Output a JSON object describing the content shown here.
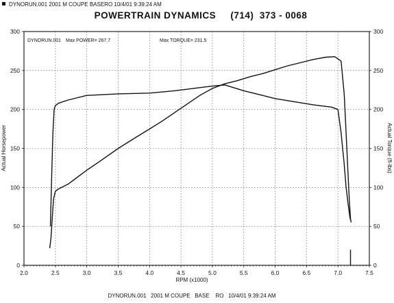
{
  "header": {
    "square_icon": "filled-square-icon",
    "text": "DYNORUN.001   2001 M COUPE   BASERO  10/4/01 9:39:24 AM"
  },
  "title": "POWERTRAIN DYNAMICS     (714)  373 - 0068",
  "footer": "DYNORUN.001   2001 M COUPE   BASE    RO   10/4/01 9:39:24 AM",
  "inner_labels": {
    "run": "DYNORUN.001",
    "max_power": "Max POWER= 267.7",
    "max_torque": "Max TORQUE= 231.5"
  },
  "chart_data": {
    "type": "line",
    "xlabel": "RPM (x1000)",
    "ylabel_left": "Actual Horsepower",
    "ylabel_right": "Actual Torque (ft-lbs)",
    "xlim": [
      2.0,
      7.5
    ],
    "ylim": [
      0,
      300
    ],
    "xticks": [
      2.0,
      2.5,
      3.0,
      3.5,
      4.0,
      4.5,
      5.0,
      5.5,
      6.0,
      6.5,
      7.0,
      7.5
    ],
    "xtick_labels": [
      "2.0",
      "2.5",
      "3.0",
      "3.5",
      "4.0",
      "4.5",
      "5.0",
      "5.5",
      "6.0",
      "6.5",
      "7.0",
      "7.5"
    ],
    "yticks": [
      0,
      50,
      100,
      150,
      200,
      250,
      300
    ],
    "ytick_labels_left": [
      "0",
      "50",
      "100",
      "150",
      "200",
      "250",
      "300"
    ],
    "ytick_labels_right": [
      "0",
      "50",
      "100",
      "150",
      "200",
      "250",
      "300"
    ],
    "grid": true,
    "series": [
      {
        "name": "Actual Horsepower",
        "x": [
          2.41,
          2.43,
          2.45,
          2.47,
          2.5,
          2.55,
          2.6,
          2.7,
          2.8,
          3.0,
          3.2,
          3.5,
          3.8,
          4.0,
          4.2,
          4.4,
          4.6,
          4.8,
          5.0,
          5.2,
          5.4,
          5.6,
          5.8,
          6.0,
          6.2,
          6.4,
          6.6,
          6.8,
          6.95,
          7.05,
          7.1,
          7.13,
          7.16,
          7.18,
          7.2,
          7.21
        ],
        "y": [
          22,
          35,
          60,
          85,
          95,
          98,
          100,
          104,
          110,
          122,
          133,
          150,
          165,
          175,
          185,
          196,
          207,
          218,
          227,
          233,
          237,
          242,
          246,
          251,
          256,
          260,
          264,
          267,
          267.7,
          262,
          220,
          170,
          120,
          85,
          60,
          55
        ]
      },
      {
        "name": "Actual Torque (ft-lbs)",
        "x": [
          2.42,
          2.44,
          2.46,
          2.48,
          2.5,
          2.55,
          2.7,
          3.0,
          3.5,
          4.0,
          4.4,
          4.8,
          5.0,
          5.2,
          5.5,
          5.8,
          6.0,
          6.3,
          6.6,
          6.9,
          7.0,
          7.05,
          7.1,
          7.13,
          7.16,
          7.19,
          7.2
        ],
        "y": [
          50,
          110,
          170,
          200,
          205,
          208,
          212,
          218,
          220,
          221,
          224,
          228,
          230,
          231.5,
          224,
          218,
          214,
          210,
          206,
          203,
          200,
          170,
          130,
          100,
          80,
          62,
          58
        ]
      }
    ],
    "marker": {
      "x": 7.2,
      "y_top": 20,
      "y_bottom": 0
    }
  }
}
